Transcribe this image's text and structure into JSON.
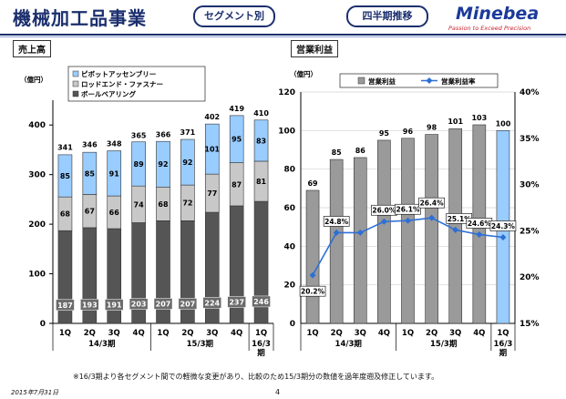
{
  "header": {
    "title": "機械加工品事業",
    "segment_pill": "セグメント別",
    "period_pill": "四半期推移",
    "logo": "Minebea",
    "tagline": "Passion to Exceed Precision"
  },
  "footer": {
    "note": "※16/3期より各セグメント間での軽微な変更があり、比較のため15/3期分の数値を過年度遡及修正しています。",
    "date": "2015年7月31日",
    "page_number": "4"
  },
  "colors": {
    "ball_bearing": "#555555",
    "rod_end": "#c8c8c8",
    "pivot": "#99ccff",
    "op_bar": "#9a9a9a",
    "rate_line": "#2e6fd6"
  },
  "chart_data": [
    {
      "type": "bar",
      "stacked": true,
      "section_label": "売上高",
      "ylabel": "（億円）",
      "ylim": [
        0,
        450
      ],
      "yticks": [
        0,
        100,
        200,
        300,
        400
      ],
      "categories": [
        "1Q",
        "2Q",
        "3Q",
        "4Q",
        "1Q",
        "2Q",
        "3Q",
        "4Q",
        "1Q"
      ],
      "groups": [
        {
          "label": "14/3期",
          "from": 0,
          "to": 3
        },
        {
          "label": "15/3期",
          "from": 4,
          "to": 7
        },
        {
          "label": "16/3\n期",
          "from": 8,
          "to": 8
        }
      ],
      "series": [
        {
          "name": "ボールベアリング",
          "values": [
            187,
            193,
            191,
            203,
            207,
            207,
            224,
            237,
            246
          ]
        },
        {
          "name": "ロッドエンド・ファスナー",
          "values": [
            68,
            67,
            66,
            74,
            68,
            72,
            77,
            87,
            81
          ]
        },
        {
          "name": "ピボットアッセンブリー",
          "values": [
            85,
            85,
            91,
            89,
            92,
            92,
            101,
            95,
            83
          ]
        }
      ],
      "legend_order": [
        "ピボットアッセンブリー",
        "ロッドエンド・ファスナー",
        "ボールベアリング"
      ],
      "totals": [
        341,
        346,
        348,
        365,
        366,
        371,
        402,
        419,
        410
      ],
      "legend_position": "top-left"
    },
    {
      "type": "bar+line",
      "section_label": "営業利益",
      "ylabel": "（億円）",
      "ylim": [
        0,
        120
      ],
      "yticks": [
        0,
        20,
        40,
        60,
        80,
        100,
        120
      ],
      "y2lim": [
        15,
        40
      ],
      "y2ticks": [
        "15%",
        "20%",
        "25%",
        "30%",
        "35%",
        "40%"
      ],
      "y2tick_values": [
        15,
        20,
        25,
        30,
        35,
        40
      ],
      "categories": [
        "1Q",
        "2Q",
        "3Q",
        "4Q",
        "1Q",
        "2Q",
        "3Q",
        "4Q",
        "1Q"
      ],
      "groups": [
        {
          "label": "14/3期",
          "from": 0,
          "to": 3
        },
        {
          "label": "15/3期",
          "from": 4,
          "to": 7
        },
        {
          "label": "16/3\n期",
          "from": 8,
          "to": 8
        }
      ],
      "series": [
        {
          "name": "営業利益",
          "kind": "bar",
          "values": [
            69,
            85,
            86,
            95,
            96,
            98,
            101,
            103,
            100
          ]
        },
        {
          "name": "営業利益率",
          "kind": "line",
          "values": [
            20.2,
            24.8,
            24.8,
            26.0,
            26.1,
            26.4,
            25.1,
            24.6,
            24.3
          ],
          "labels": [
            "20.2%",
            "24.8%",
            "",
            "26.0%",
            "26.1%",
            "26.4%",
            "25.1%",
            "24.6%",
            "24.3%"
          ]
        }
      ],
      "legend_position": "top"
    }
  ]
}
